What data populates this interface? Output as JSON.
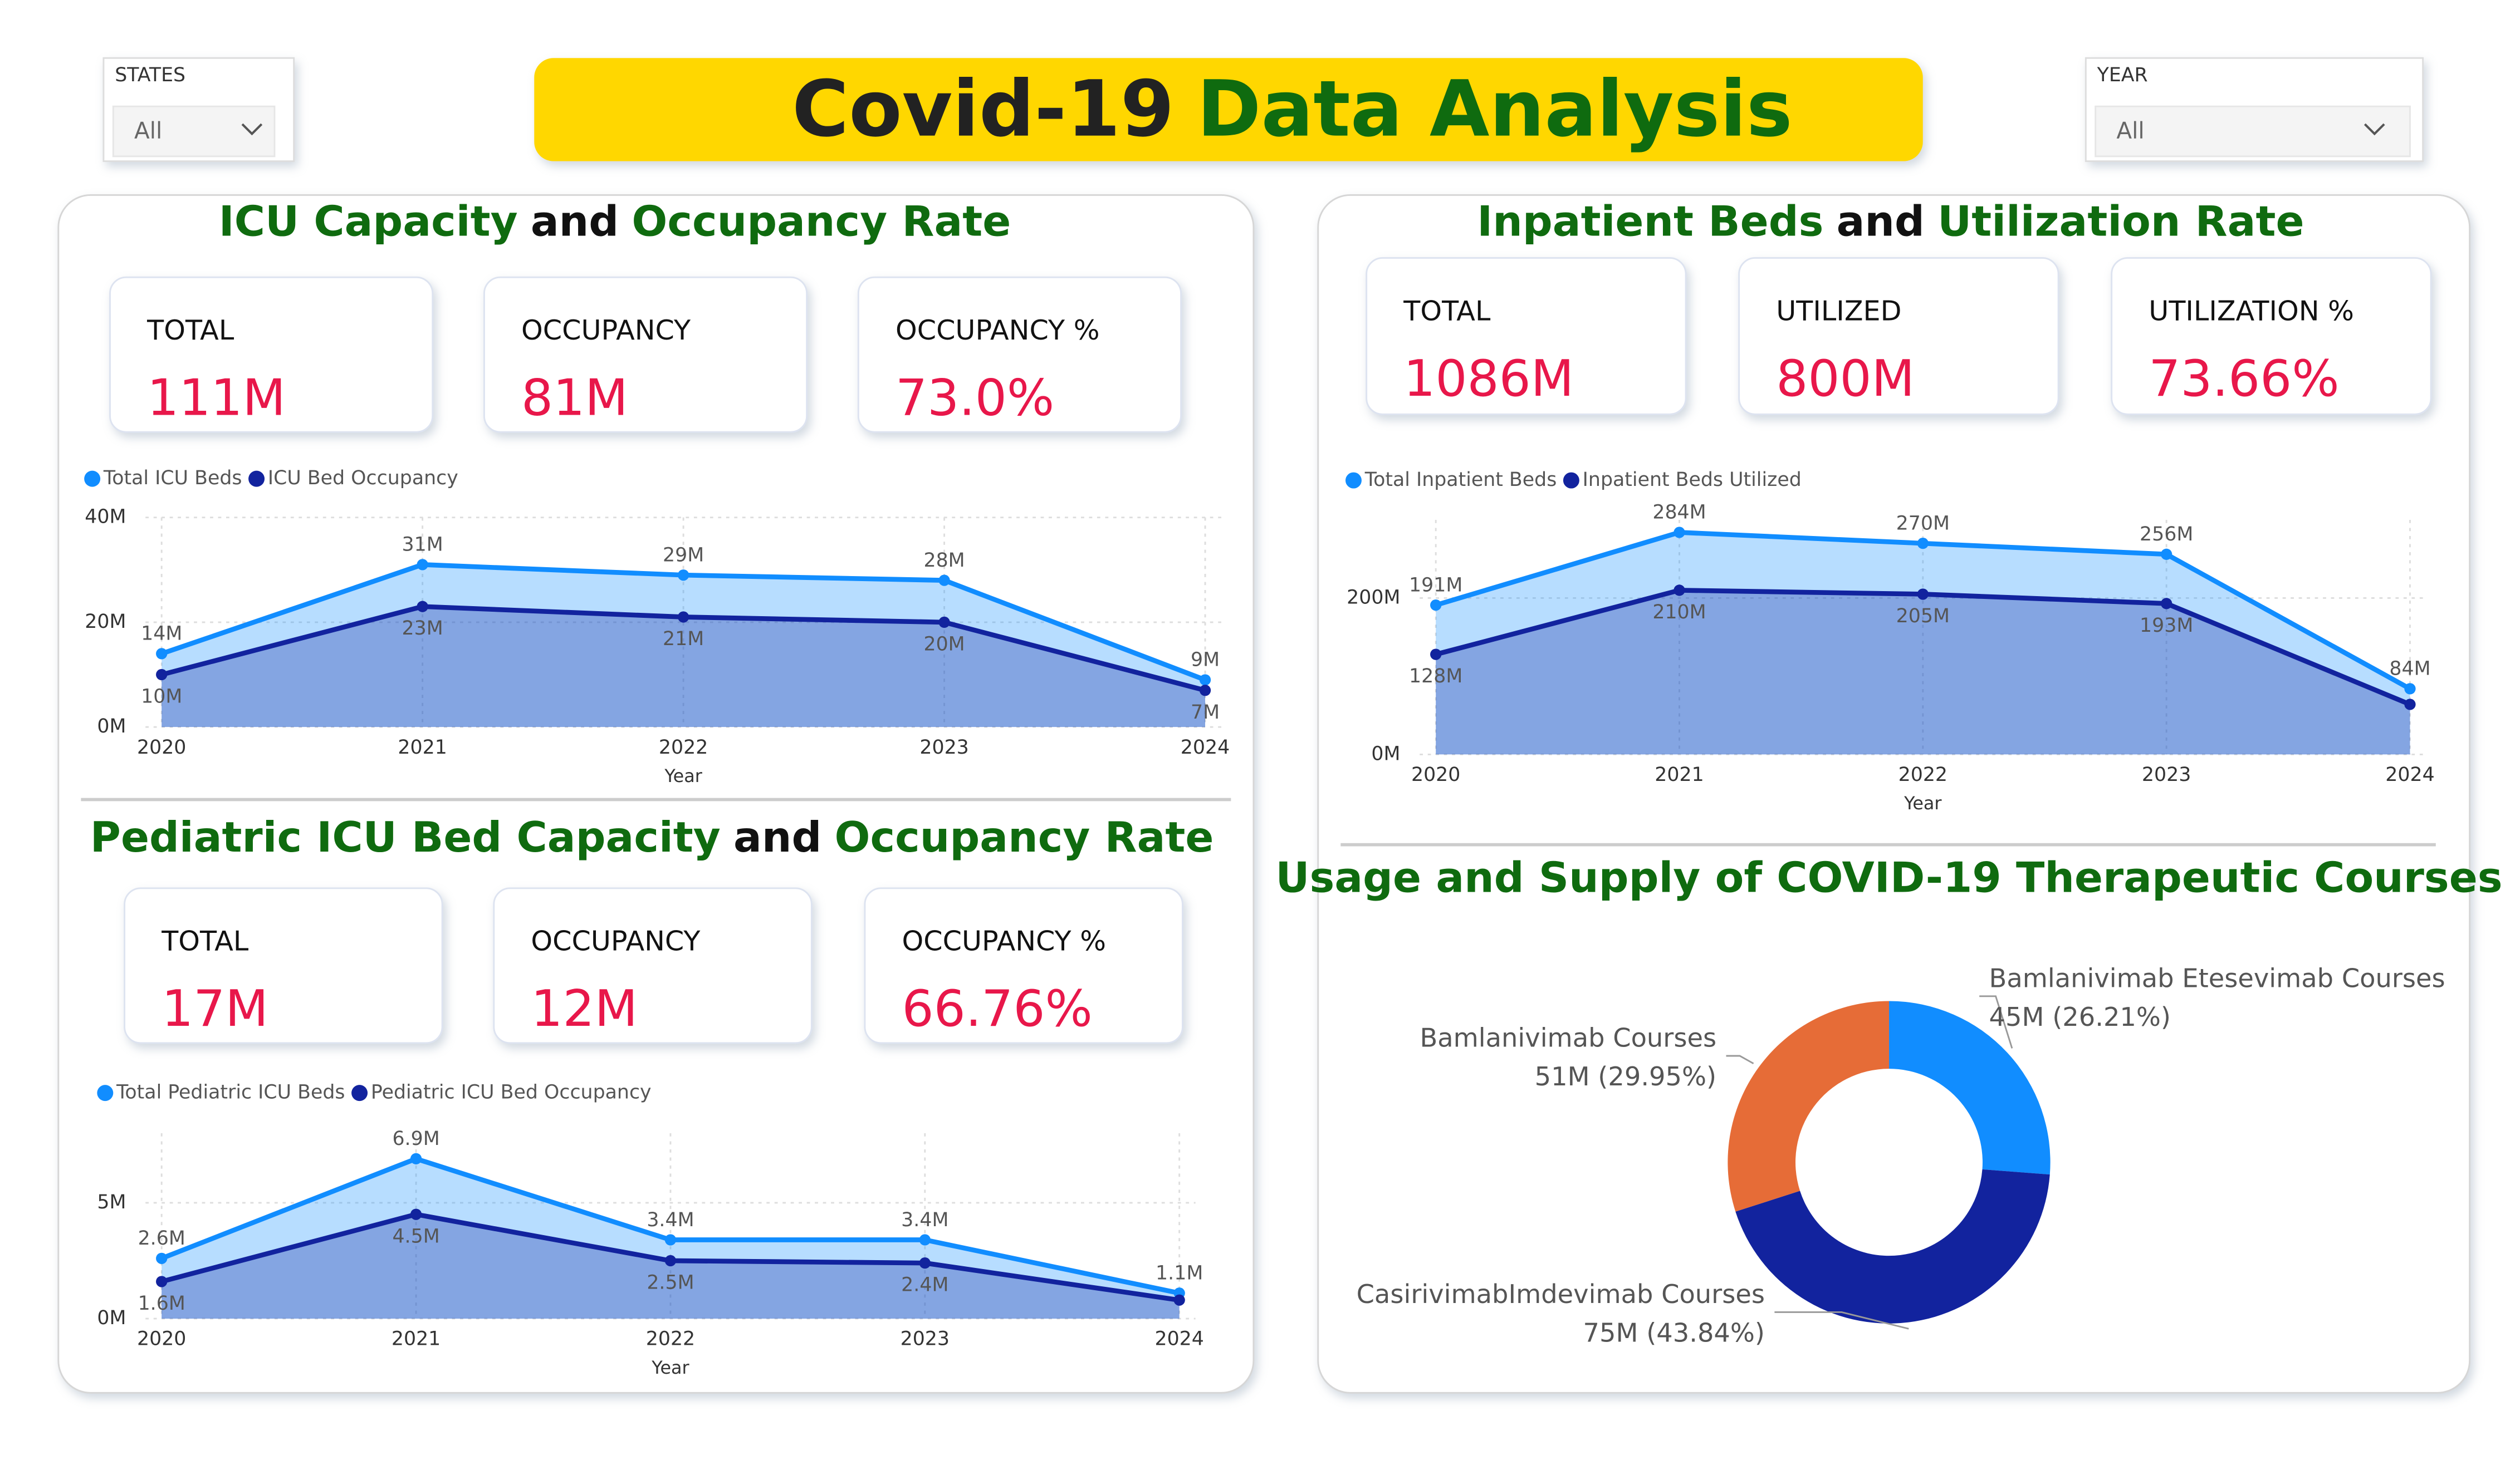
{
  "title": [
    "Covid-19",
    "Data Analysis"
  ],
  "filters": [
    {
      "label": "STATES",
      "value": "All"
    },
    {
      "label": "YEAR",
      "value": "All"
    }
  ],
  "kpi_groups": [
    [
      {
        "label": "TOTAL",
        "value": "111M"
      },
      {
        "label": "OCCUPANCY",
        "value": "81M"
      },
      {
        "label": "OCCUPANCY %",
        "value": "73.0%"
      }
    ],
    [
      {
        "label": "TOTAL",
        "value": "1086M"
      },
      {
        "label": "UTILIZED",
        "value": "800M"
      },
      {
        "label": "UTILIZATION %",
        "value": "73.66%"
      }
    ],
    [
      {
        "label": "TOTAL",
        "value": "17M"
      },
      {
        "label": "OCCUPANCY",
        "value": "12M"
      },
      {
        "label": "OCCUPANCY %",
        "value": "66.76%"
      }
    ]
  ],
  "chart_data": [
    {
      "type": "area",
      "title": [
        "ICU Capacity",
        "and",
        "Occupancy Rate"
      ],
      "x_label": "Year",
      "categories": [
        "2020",
        "2021",
        "2022",
        "2023",
        "2024"
      ],
      "ylim": [
        0,
        40000000
      ],
      "yticks": [
        {
          "value": 0,
          "label": "0M"
        },
        {
          "value": 20000000,
          "label": "20M"
        },
        {
          "value": 40000000,
          "label": "40M"
        }
      ],
      "grid": true,
      "series": [
        {
          "name": "Total ICU Beds",
          "color": "#118DFF",
          "values": [
            14000000,
            31000000,
            29000000,
            28000000,
            9000000
          ],
          "value_labels": [
            "14M",
            "31M",
            "29M",
            "28M",
            "9M"
          ]
        },
        {
          "name": "ICU Bed Occupancy",
          "color": "#12239E",
          "values": [
            10000000,
            23000000,
            21000000,
            20000000,
            7000000
          ],
          "value_labels": [
            "10M",
            "23M",
            "21M",
            "20M",
            "7M"
          ]
        }
      ]
    },
    {
      "type": "area",
      "title": [
        "Inpatient Beds",
        "and",
        "Utilization Rate"
      ],
      "x_label": "Year",
      "categories": [
        "2020",
        "2021",
        "2022",
        "2023",
        "2024"
      ],
      "ylim": [
        0,
        300000000
      ],
      "yticks": [
        {
          "value": 0,
          "label": "0M"
        },
        {
          "value": 200000000,
          "label": "200M"
        }
      ],
      "grid": true,
      "series": [
        {
          "name": "Total Inpatient Beds",
          "color": "#118DFF",
          "values": [
            191000000,
            284000000,
            270000000,
            256000000,
            84000000
          ],
          "value_labels": [
            "191M",
            "284M",
            "270M",
            "256M",
            "84M"
          ]
        },
        {
          "name": "Inpatient Beds Utilized",
          "color": "#12239E",
          "values": [
            128000000,
            210000000,
            205000000,
            193000000,
            64000000
          ],
          "value_labels": [
            "128M",
            "210M",
            "205M",
            "193M",
            null
          ]
        }
      ]
    },
    {
      "type": "area",
      "title": [
        "Pediatric ICU Bed Capacity",
        "and",
        "Occupancy Rate"
      ],
      "x_label": "Year",
      "categories": [
        "2020",
        "2021",
        "2022",
        "2023",
        "2024"
      ],
      "ylim": [
        0,
        8000000
      ],
      "yticks": [
        {
          "value": 0,
          "label": "0M"
        },
        {
          "value": 5000000,
          "label": "5M"
        }
      ],
      "grid": true,
      "series": [
        {
          "name": "Total Pediatric ICU Beds",
          "color": "#118DFF",
          "values": [
            2600000,
            6900000,
            3400000,
            3400000,
            1100000
          ],
          "value_labels": [
            "2.6M",
            "6.9M",
            "3.4M",
            "3.4M",
            "1.1M"
          ]
        },
        {
          "name": "Pediatric ICU Bed Occupancy",
          "color": "#12239E",
          "values": [
            1600000,
            4500000,
            2500000,
            2400000,
            800000
          ],
          "value_labels": [
            "1.6M",
            "4.5M",
            "2.5M",
            "2.4M",
            null
          ]
        }
      ]
    },
    {
      "type": "donut",
      "title": [
        "Usage and Supply of COVID-19 Therapeutic Courses"
      ],
      "categories": [
        "Bamlanivimab Etesevimab Courses",
        "CasirivimabImdevimab Courses",
        "Bamlanivimab Courses"
      ],
      "values": [
        26.21,
        43.84,
        29.95
      ],
      "value_labels": [
        "45M (26.21%)",
        "75M (43.84%)",
        "51M (29.95%)"
      ],
      "colors": [
        "#118DFF",
        "#12239E",
        "#E66C37"
      ]
    }
  ]
}
